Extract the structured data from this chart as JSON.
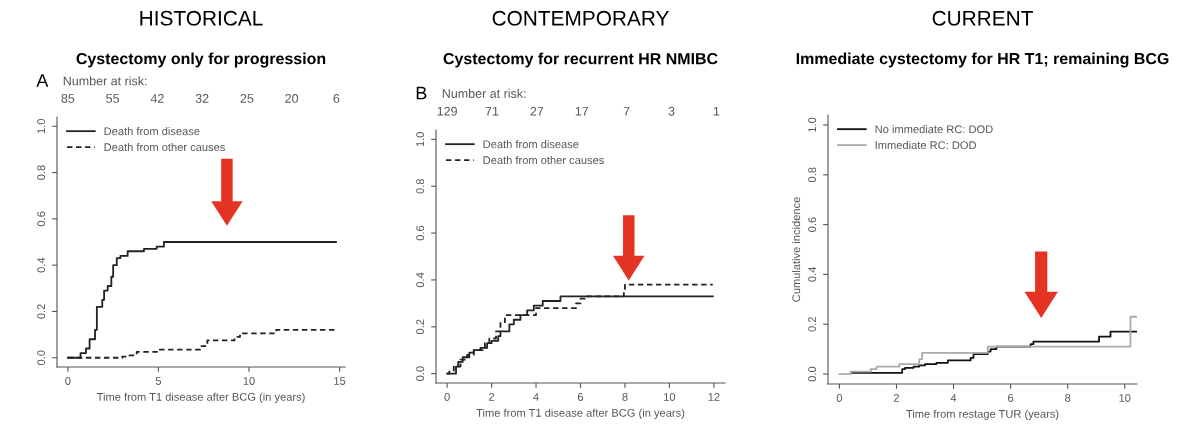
{
  "chart_data": [
    {
      "type": "step",
      "title": "HISTORICAL",
      "subtitle": "Cystectomy only for progression",
      "xlabel": "Time from T1 disease after BCG (in years)",
      "annotations": [
        "A",
        "Number at risk:",
        "85",
        "55",
        "42",
        "32",
        "25",
        "20",
        "6"
      ],
      "xlim": [
        -0.6,
        15.3
      ],
      "xticks": [
        0,
        5,
        10,
        15
      ],
      "ylim": [
        -0.04,
        1.04
      ],
      "yticks": [
        {
          "value": 0,
          "label": "0.0"
        },
        {
          "value": 0.2,
          "label": "0.2"
        },
        {
          "value": 0.4,
          "label": "0.4"
        },
        {
          "value": 0.6,
          "label": "0.6"
        },
        {
          "value": 0.8,
          "label": "0.8"
        },
        {
          "value": 1,
          "label": "1.0"
        }
      ],
      "grid": false,
      "legend": "top left",
      "series": [
        {
          "name": "Death from disease",
          "color": "#222222",
          "line_style": "solid",
          "x": [
            0,
            0.7,
            1.0,
            1.2,
            1.5,
            1.6,
            1.9,
            2.0,
            2.2,
            2.4,
            2.5,
            2.7,
            2.9,
            3.3,
            4.2,
            4.9,
            5.3,
            14.8
          ],
          "values": [
            0,
            0.02,
            0.04,
            0.08,
            0.12,
            0.22,
            0.25,
            0.29,
            0.31,
            0.35,
            0.4,
            0.43,
            0.44,
            0.46,
            0.47,
            0.48,
            0.5,
            0.5
          ]
        },
        {
          "name": "Death from other causes",
          "color": "#222222",
          "line_style": "dashed",
          "x": [
            0,
            3.0,
            3.4,
            3.8,
            5.0,
            7.3,
            7.7,
            9.2,
            9.5,
            11.5,
            14.8
          ],
          "values": [
            0,
            0.005,
            0.01,
            0.025,
            0.035,
            0.05,
            0.075,
            0.09,
            0.105,
            0.12,
            0.12
          ]
        }
      ]
    },
    {
      "type": "step",
      "title": "CONTEMPORARY",
      "subtitle": "Cystectomy for recurrent HR NMIBC",
      "xlabel": "Time from T1 disease after BCG (in years)",
      "annotations": [
        "B",
        "Number at risk:",
        "129",
        "71",
        "27",
        "17",
        "7",
        "3",
        "1"
      ],
      "xlim": [
        -0.5,
        12.5
      ],
      "xticks": [
        0,
        2,
        4,
        6,
        8,
        10,
        12
      ],
      "ylim": [
        -0.04,
        1.04
      ],
      "yticks": [
        {
          "value": 0,
          "label": "0.0"
        },
        {
          "value": 0.2,
          "label": "0.2"
        },
        {
          "value": 0.4,
          "label": "0.4"
        },
        {
          "value": 0.6,
          "label": "0.6"
        },
        {
          "value": 0.8,
          "label": "0.8"
        },
        {
          "value": 1,
          "label": "1.0"
        }
      ],
      "grid": false,
      "legend": "top left",
      "series": [
        {
          "name": "Death from disease",
          "color": "#222222",
          "line_style": "solid",
          "x": [
            0,
            0.4,
            0.5,
            0.7,
            1.0,
            1.2,
            1.5,
            1.8,
            2.0,
            2.3,
            2.4,
            2.8,
            3.0,
            3.3,
            3.6,
            3.9,
            4.3,
            5.1,
            11.95
          ],
          "values": [
            0,
            0.03,
            0.05,
            0.07,
            0.09,
            0.1,
            0.11,
            0.13,
            0.14,
            0.16,
            0.18,
            0.21,
            0.23,
            0.25,
            0.27,
            0.29,
            0.31,
            0.33,
            0.33
          ]
        },
        {
          "name": "Death from other causes",
          "color": "#222222",
          "line_style": "dashed",
          "x": [
            0,
            0.1,
            0.3,
            0.6,
            0.9,
            1.2,
            1.7,
            1.9,
            2.2,
            2.4,
            2.6,
            4.0,
            5.8,
            6.0,
            6.2,
            7.95,
            8.0,
            11.95
          ],
          "values": [
            0,
            0.01,
            0.03,
            0.06,
            0.08,
            0.1,
            0.13,
            0.15,
            0.18,
            0.22,
            0.25,
            0.28,
            0.3,
            0.32,
            0.33,
            0.35,
            0.38,
            0.38
          ]
        }
      ]
    },
    {
      "type": "step",
      "title": "CURRENT",
      "subtitle": "Immediate cystectomy for HR T1; remaining BCG",
      "xlabel": "Time from restage TUR (years)",
      "ylabel": "Cumulative incidence",
      "xlim": [
        -0.4,
        10.43
      ],
      "xticks": [
        0,
        2,
        4,
        6,
        8,
        10
      ],
      "ylim": [
        -0.04,
        1.04
      ],
      "yticks": [
        {
          "value": 0,
          "label": "0.0"
        },
        {
          "value": 0.2,
          "label": "0.2"
        },
        {
          "value": 0.4,
          "label": "0.4"
        },
        {
          "value": 0.6,
          "label": "0.6"
        },
        {
          "value": 0.8,
          "label": "0.8"
        },
        {
          "value": 1,
          "label": "1.0"
        }
      ],
      "grid": false,
      "legend": "top left",
      "series": [
        {
          "name": "No immediate RC: DOD",
          "color": "#111111",
          "line_style": "solid",
          "x": [
            0.4,
            2.2,
            2.3,
            2.6,
            2.8,
            3.0,
            3.4,
            3.8,
            4.6,
            4.7,
            5.2,
            5.3,
            5.5,
            6.7,
            6.8,
            9.1,
            9.5,
            10.4
          ],
          "values": [
            0.005,
            0.02,
            0.025,
            0.03,
            0.035,
            0.04,
            0.045,
            0.055,
            0.065,
            0.08,
            0.09,
            0.1,
            0.11,
            0.12,
            0.13,
            0.15,
            0.17,
            0.17
          ]
        },
        {
          "name": "Immediate RC: DOD",
          "color": "#aaaaaa",
          "line_style": "solid",
          "x": [
            0,
            0.4,
            1.1,
            1.3,
            2.1,
            2.8,
            2.9,
            5.2,
            10.2,
            10.4
          ],
          "values": [
            0,
            0.01,
            0.02,
            0.03,
            0.04,
            0.06,
            0.085,
            0.11,
            0.23,
            0.23
          ]
        }
      ]
    }
  ]
}
